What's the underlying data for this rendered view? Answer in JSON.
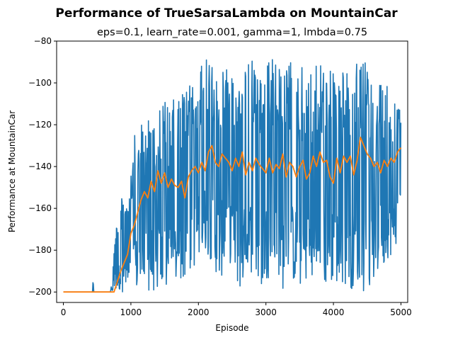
{
  "chart_data": {
    "type": "line",
    "title": "Performance of TrueSarsaLambda on MountainCar",
    "subtitle": "eps=0.1, learn_rate=0.001, gamma=1, lmbda=0.75",
    "xlabel": "Episode",
    "ylabel": "Performance at MountainCar",
    "xlim": [
      -100,
      5100
    ],
    "ylim": [
      -205,
      -80
    ],
    "xticks": [
      0,
      1000,
      2000,
      3000,
      4000,
      5000
    ],
    "yticks": [
      -200,
      -180,
      -160,
      -140,
      -120,
      -100,
      -80
    ],
    "grid": false,
    "legend": "none",
    "colors": {
      "raw": "#1f77b4",
      "smoothed": "#ff7f0e"
    },
    "series": [
      {
        "id": "raw",
        "x": [
          0,
          400,
          430,
          440,
          445,
          450,
          460,
          700,
          750,
          780,
          800,
          850,
          900,
          950,
          1000,
          1050,
          1100,
          1150,
          1200,
          1250,
          1300,
          1400,
          1500,
          1600,
          1700,
          1800,
          1900,
          2000,
          2100,
          2200,
          2300,
          2400,
          2500,
          2600,
          2700,
          2800,
          2900,
          3000,
          3100,
          3200,
          3300,
          3400,
          3500,
          3600,
          3700,
          3800,
          3900,
          4000,
          4100,
          4200,
          4300,
          4400,
          4500,
          4600,
          4700,
          4800,
          4900,
          5000
        ],
        "upper": [
          -200,
          -200,
          -200,
          -184,
          -184,
          -200,
          -200,
          -200,
          -178,
          -168,
          -160,
          -155,
          -155,
          -150,
          -140,
          -125,
          -125,
          -120,
          -120,
          -115,
          -110,
          -110,
          -108,
          -108,
          -108,
          -100,
          -100,
          -95,
          -88,
          -88,
          -88,
          -90,
          -88,
          -90,
          -92,
          -88,
          -88,
          -88,
          -88,
          -92,
          -90,
          -88,
          -92,
          -90,
          -95,
          -88,
          -92,
          -88,
          -92,
          -94,
          -88,
          -92,
          -88,
          -108,
          -96,
          -102,
          -104,
          -108
        ],
        "lower": [
          -200,
          -200,
          -200,
          -200,
          -200,
          -200,
          -200,
          -200,
          -200,
          -200,
          -200,
          -200,
          -200,
          -200,
          -200,
          -200,
          -200,
          -200,
          -200,
          -200,
          -200,
          -200,
          -200,
          -200,
          -195,
          -195,
          -190,
          -185,
          -182,
          -185,
          -195,
          -190,
          -185,
          -200,
          -195,
          -190,
          -200,
          -195,
          -190,
          -200,
          -198,
          -195,
          -200,
          -195,
          -200,
          -195,
          -198,
          -195,
          -200,
          -195,
          -200,
          -200,
          -200,
          -195,
          -190,
          -185,
          -180,
          -170
        ]
      },
      {
        "id": "smoothed",
        "x": [
          0,
          720,
          750,
          780,
          800,
          850,
          900,
          950,
          1000,
          1050,
          1100,
          1150,
          1200,
          1250,
          1300,
          1350,
          1400,
          1450,
          1500,
          1550,
          1600,
          1650,
          1700,
          1750,
          1800,
          1850,
          1900,
          1950,
          2000,
          2050,
          2100,
          2150,
          2200,
          2250,
          2300,
          2350,
          2400,
          2450,
          2500,
          2550,
          2600,
          2650,
          2700,
          2750,
          2800,
          2850,
          2900,
          2950,
          3000,
          3050,
          3100,
          3150,
          3200,
          3250,
          3300,
          3350,
          3400,
          3450,
          3500,
          3550,
          3600,
          3650,
          3700,
          3750,
          3800,
          3850,
          3900,
          3950,
          4000,
          4050,
          4100,
          4150,
          4200,
          4250,
          4300,
          4350,
          4400,
          4450,
          4500,
          4550,
          4600,
          4650,
          4700,
          4750,
          4800,
          4850,
          4900,
          4950,
          5000
        ],
        "y": [
          -200,
          -200,
          -200,
          -197,
          -195,
          -190,
          -186,
          -182,
          -172,
          -168,
          -162,
          -156,
          -152,
          -155,
          -147,
          -152,
          -142,
          -148,
          -143,
          -150,
          -146,
          -149,
          -150,
          -147,
          -155,
          -145,
          -142,
          -140,
          -143,
          -138,
          -142,
          -133,
          -130,
          -138,
          -140,
          -134,
          -136,
          -138,
          -142,
          -136,
          -140,
          -133,
          -144,
          -138,
          -142,
          -136,
          -139,
          -141,
          -143,
          -136,
          -143,
          -139,
          -141,
          -134,
          -145,
          -138,
          -140,
          -145,
          -140,
          -137,
          -146,
          -143,
          -135,
          -140,
          -133,
          -138,
          -137,
          -145,
          -148,
          -136,
          -143,
          -135,
          -138,
          -135,
          -144,
          -137,
          -126,
          -130,
          -134,
          -136,
          -140,
          -138,
          -143,
          -137,
          -140,
          -136,
          -138,
          -133,
          -131
        ]
      }
    ]
  }
}
